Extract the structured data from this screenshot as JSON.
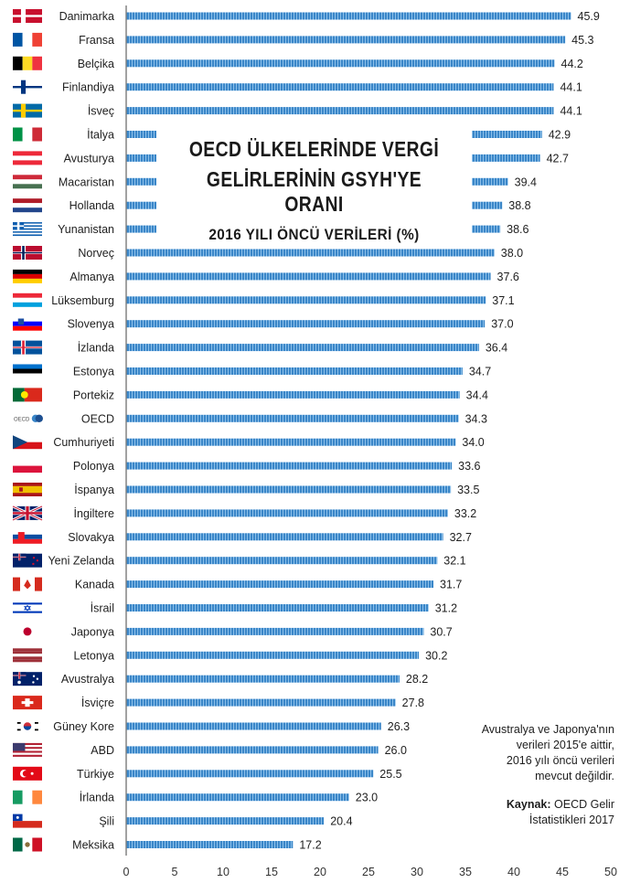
{
  "chart_data": {
    "type": "bar",
    "orientation": "horizontal",
    "title_lines": [
      "OECD ÜLKELERİNDE VERGİ",
      "GELİRLERİNİN GSYH'YE ORANI",
      "2016 YILI ÖNCÜ VERİLERİ (%)"
    ],
    "categories": [
      "Danimarka",
      "Fransa",
      "Belçika",
      "Finlandiya",
      "İsveç",
      "İtalya",
      "Avusturya",
      "Macaristan",
      "Hollanda",
      "Yunanistan",
      "Norveç",
      "Almanya",
      "Lüksemburg",
      "Slovenya",
      "İzlanda",
      "Estonya",
      "Portekiz",
      "OECD",
      "Cumhuriyeti",
      "Polonya",
      "İspanya",
      "İngiltere",
      "Slovakya",
      "Yeni Zelanda",
      "Kanada",
      "İsrail",
      "Japonya",
      "Letonya",
      "Avustralya",
      "İsviçre",
      "Güney Kore",
      "ABD",
      "Türkiye",
      "İrlanda",
      "Şili",
      "Meksika"
    ],
    "values": [
      45.9,
      45.3,
      44.2,
      44.1,
      44.1,
      42.9,
      42.7,
      39.4,
      38.8,
      38.6,
      38.0,
      37.6,
      37.1,
      37.0,
      36.4,
      34.7,
      34.4,
      34.3,
      34.0,
      33.6,
      33.5,
      33.2,
      32.7,
      32.1,
      31.7,
      31.2,
      30.7,
      30.2,
      28.2,
      27.8,
      26.3,
      26.0,
      25.5,
      23.0,
      20.4,
      17.2
    ],
    "value_labels": [
      "45.9",
      "45.3",
      "44.2",
      "44.1",
      "44.1",
      "42.9",
      "42.7",
      "39.4",
      "38.8",
      "38.6",
      "38.0",
      "37.6",
      "37.1",
      "37.0",
      "36.4",
      "34.7",
      "34.4",
      "34.3",
      "34.0",
      "33.6",
      "33.5",
      "33.2",
      "32.7",
      "32.1",
      "31.7",
      "31.2",
      "30.7",
      "30.2",
      "28.2",
      "27.8",
      "26.3",
      "26.0",
      "25.5",
      "23.0",
      "20.4",
      "17.2"
    ],
    "xlim": [
      0,
      50
    ],
    "xticks": [
      "0",
      "5",
      "10",
      "15",
      "20",
      "25",
      "30",
      "35",
      "40",
      "45",
      "50"
    ],
    "xlabel": "",
    "ylabel": "",
    "colors": {
      "bar": "#3a86c8",
      "bar_stripe": "#8cc0ea"
    }
  },
  "note": {
    "lines": [
      "Avustralya ve Japonya'nın",
      "verileri 2015'e aittir,",
      "2016 yılı öncü verileri",
      "mevcut değildir."
    ],
    "source_label": "Kaynak:",
    "source_text_1": " OECD Gelir",
    "source_text_2": "İstatistikleri 2017"
  },
  "flags": [
    "denmark-flag",
    "france-flag",
    "belgium-flag",
    "finland-flag",
    "sweden-flag",
    "italy-flag",
    "austria-flag",
    "hungary-flag",
    "netherlands-flag",
    "greece-flag",
    "norway-flag",
    "germany-flag",
    "luxembourg-flag",
    "slovenia-flag",
    "iceland-flag",
    "estonia-flag",
    "portugal-flag",
    "oecd-logo",
    "czechia-flag",
    "poland-flag",
    "spain-flag",
    "uk-flag",
    "slovakia-flag",
    "new-zealand-flag",
    "canada-flag",
    "israel-flag",
    "japan-flag",
    "latvia-flag",
    "australia-flag",
    "switzerland-flag",
    "south-korea-flag",
    "usa-flag",
    "turkey-flag",
    "ireland-flag",
    "chile-flag",
    "mexico-flag"
  ],
  "oecd_logo_text": "OECD"
}
